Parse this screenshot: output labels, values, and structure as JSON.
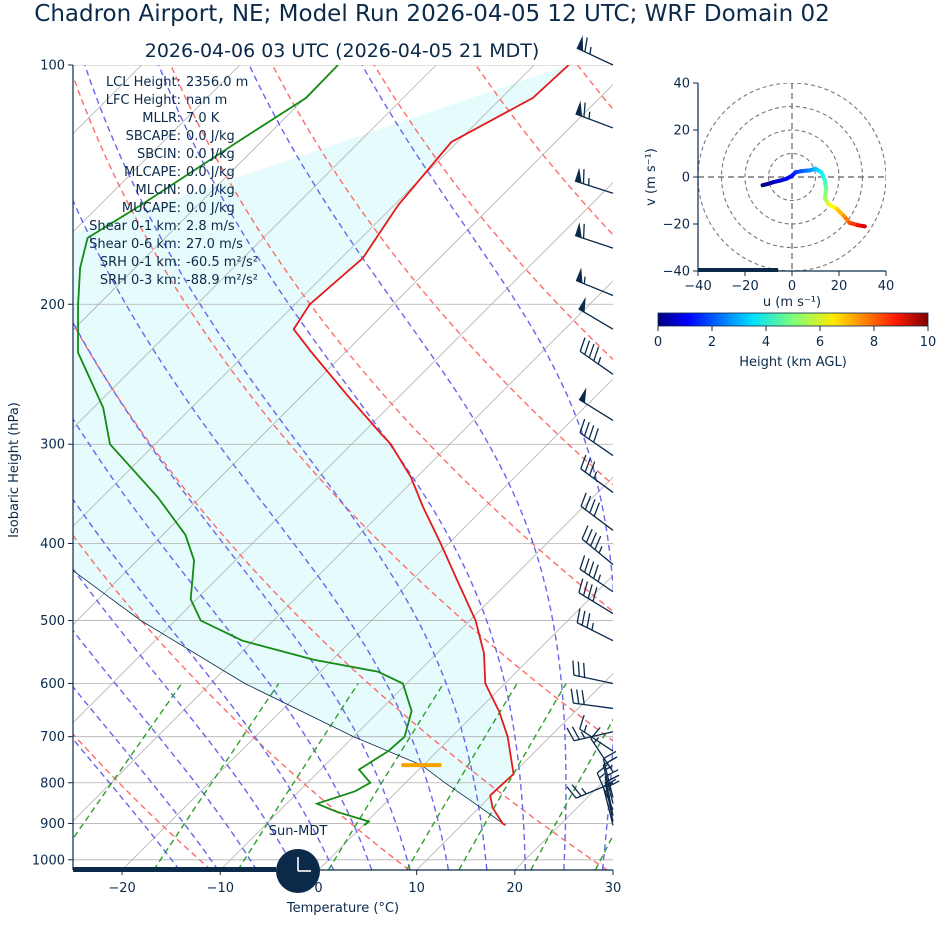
{
  "title": "Chadron Airport, NE; Model Run 2026-04-05 12 UTC; WRF Domain 02",
  "subtitle": "2026-04-06 03 UTC  (2026-04-05 21 MDT)",
  "indices": [
    {
      "label": "LCL Height:",
      "value": "2356.0 m"
    },
    {
      "label": "LFC Height:",
      "value": "nan m"
    },
    {
      "label": "MLLR:",
      "value": "7.0 K"
    },
    {
      "label": "SBCAPE:",
      "value": "0.0 J/kg"
    },
    {
      "label": "SBCIN:",
      "value": "0.0 J/kg"
    },
    {
      "label": "MLCAPE:",
      "value": "0.0 J/kg"
    },
    {
      "label": "MLCIN:",
      "value": "0.0 J/kg"
    },
    {
      "label": "MUCAPE:",
      "value": "0.0 J/kg"
    },
    {
      "label": "Shear 0-1 km:",
      "value": "2.8 m/s"
    },
    {
      "label": "Shear 0-6 km:",
      "value": "27.0 m/s"
    },
    {
      "label": "SRH 0-1 km:",
      "value": "-60.5 m²/s²"
    },
    {
      "label": "SRH 0-3 km:",
      "value": "-88.9 m²/s²"
    }
  ],
  "sun_label": "Sun-MDT",
  "colors": {
    "temperature": "#e31a1c",
    "dewpoint": "#138a13",
    "parcel": "#0b2a4a",
    "dry_adiabat": "#ff6b6b",
    "moist_adiabat": "#6666ee",
    "mixing_ratio": "#2e9e2e",
    "cape_fill": "#e6fbfb",
    "lcl_marker": "#f4a300",
    "text": "#0b2a4a"
  },
  "chart_data": [
    {
      "type": "line",
      "name": "skew-t",
      "xlabel": "Temperature (°C)",
      "ylabel": "Isobaric Height (hPa)",
      "xlim": [
        -25,
        30
      ],
      "ylim": [
        1030,
        100
      ],
      "y_scale": "log",
      "x_ticks": [
        -20,
        -10,
        0,
        10,
        20,
        30
      ],
      "y_ticks": [
        100,
        200,
        300,
        400,
        500,
        600,
        700,
        800,
        900,
        1000
      ],
      "grid": true,
      "series": [
        {
          "role": "temperature",
          "points": [
            [
              100,
              -56.5
            ],
            [
              110,
              -56.8
            ],
            [
              125,
              -60.6
            ],
            [
              150,
              -59.6
            ],
            [
              175,
              -57.8
            ],
            [
              200,
              -58.5
            ],
            [
              215,
              -57.6
            ],
            [
              230,
              -53.4
            ],
            [
              260,
              -45.5
            ],
            [
              290,
              -38.3
            ],
            [
              300,
              -36.0
            ],
            [
              330,
              -30.6
            ],
            [
              360,
              -26.3
            ],
            [
              400,
              -20.8
            ],
            [
              450,
              -14.8
            ],
            [
              500,
              -9.4
            ],
            [
              550,
              -5.2
            ],
            [
              600,
              -2.0
            ],
            [
              650,
              2.2
            ],
            [
              700,
              5.7
            ],
            [
              750,
              8.5
            ],
            [
              780,
              10.1
            ],
            [
              800,
              10.0
            ],
            [
              830,
              9.9
            ],
            [
              860,
              11.4
            ],
            [
              900,
              14.0
            ],
            [
              905,
              14.5
            ]
          ]
        },
        {
          "role": "dewpoint",
          "points": [
            [
              100,
              -80.0
            ],
            [
              110,
              -79.9
            ],
            [
              125,
              -82.4
            ],
            [
              150,
              -85.8
            ],
            [
              165,
              -87.9
            ],
            [
              180,
              -85.6
            ],
            [
              200,
              -82.1
            ],
            [
              230,
              -77.2
            ],
            [
              270,
              -69.0
            ],
            [
              300,
              -64.6
            ],
            [
              350,
              -54.3
            ],
            [
              390,
              -47.7
            ],
            [
              420,
              -44.2
            ],
            [
              470,
              -40.6
            ],
            [
              500,
              -37.4
            ],
            [
              530,
              -31.1
            ],
            [
              560,
              -21.9
            ],
            [
              580,
              -14.1
            ],
            [
              600,
              -10.4
            ],
            [
              650,
              -6.7
            ],
            [
              700,
              -4.8
            ],
            [
              730,
              -5.0
            ],
            [
              770,
              -6.1
            ],
            [
              800,
              -3.6
            ],
            [
              820,
              -4.3
            ],
            [
              850,
              -6.9
            ],
            [
              870,
              -4.1
            ],
            [
              895,
              0.2
            ],
            [
              905,
              0.1
            ]
          ]
        },
        {
          "role": "parcel",
          "points": [
            [
              905,
              14.5
            ],
            [
              850,
              9.2
            ],
            [
              800,
              4.0
            ],
            [
              760,
              -0.2
            ],
            [
              700,
              -10.0
            ],
            [
              600,
              -26.5
            ],
            [
              500,
              -43.5
            ],
            [
              400,
              -62.0
            ],
            [
              300,
              -82.0
            ],
            [
              200,
              -104.0
            ]
          ]
        }
      ],
      "lcl_marker": {
        "pressure": 760,
        "temperature": -0.2
      },
      "dry_adiabats_K": [
        240,
        260,
        280,
        300,
        320,
        340,
        360,
        380,
        400,
        420
      ],
      "moist_adiabats_C": [
        -16,
        -12,
        -8,
        -4,
        0,
        4,
        8,
        12,
        16,
        20,
        24,
        28
      ],
      "mixing_ratios_gkg": [
        0.4,
        1,
        2,
        4,
        7,
        10,
        16,
        24,
        32
      ],
      "skew_note": "isotherms skewed 45 degrees"
    },
    {
      "type": "scatter",
      "name": "hodograph",
      "xlabel": "u (m s⁻¹)",
      "ylabel": "v (m s⁻¹)",
      "xlim": [
        -40,
        40
      ],
      "ylim": [
        -40,
        40
      ],
      "x_ticks": [
        -40,
        -20,
        0,
        20,
        40
      ],
      "y_ticks": [
        -40,
        -20,
        0,
        20,
        40
      ],
      "ring_radii": [
        10,
        20,
        30,
        40
      ],
      "points": [
        {
          "u": -12.5,
          "v": -3.5,
          "h": 0.0
        },
        {
          "u": -10.5,
          "v": -3.0,
          "h": 0.2
        },
        {
          "u": -8.0,
          "v": -2.2,
          "h": 0.5
        },
        {
          "u": -5.0,
          "v": -1.5,
          "h": 0.8
        },
        {
          "u": -2.5,
          "v": -0.8,
          "h": 1.1
        },
        {
          "u": 0.0,
          "v": 0.5,
          "h": 1.4
        },
        {
          "u": 1.5,
          "v": 2.0,
          "h": 1.7
        },
        {
          "u": 4.0,
          "v": 2.5,
          "h": 2.1
        },
        {
          "u": 7.5,
          "v": 2.8,
          "h": 2.6
        },
        {
          "u": 10.0,
          "v": 3.5,
          "h": 3.1
        },
        {
          "u": 12.5,
          "v": 2.0,
          "h": 3.7
        },
        {
          "u": 14.0,
          "v": -1.5,
          "h": 4.3
        },
        {
          "u": 14.5,
          "v": -5.0,
          "h": 4.8
        },
        {
          "u": 14.0,
          "v": -9.0,
          "h": 5.3
        },
        {
          "u": 15.5,
          "v": -11.5,
          "h": 5.9
        },
        {
          "u": 19.0,
          "v": -13.5,
          "h": 6.6
        },
        {
          "u": 22.0,
          "v": -16.5,
          "h": 7.2
        },
        {
          "u": 24.5,
          "v": -19.5,
          "h": 7.9
        },
        {
          "u": 28.0,
          "v": -20.5,
          "h": 8.6
        },
        {
          "u": 31.0,
          "v": -21.0,
          "h": 9.3
        }
      ]
    },
    {
      "type": "heatmap",
      "name": "colorbar",
      "xlabel": "Height (km AGL)",
      "xlim": [
        0,
        10
      ],
      "x_ticks": [
        0,
        2,
        4,
        6,
        8,
        10
      ],
      "colormap": "jet"
    }
  ],
  "barbs": [
    {
      "p": 100,
      "u": 30,
      "v": -14
    },
    {
      "p": 120,
      "u": 32,
      "v": -12
    },
    {
      "p": 145,
      "u": 31,
      "v": -10
    },
    {
      "p": 170,
      "u": 30,
      "v": -10
    },
    {
      "p": 195,
      "u": 27,
      "v": -11
    },
    {
      "p": 215,
      "u": 22,
      "v": -13
    },
    {
      "p": 245,
      "u": 20,
      "v": -14
    },
    {
      "p": 280,
      "u": 21,
      "v": -13
    },
    {
      "p": 310,
      "u": 16,
      "v": -11
    },
    {
      "p": 345,
      "u": 15,
      "v": -11
    },
    {
      "p": 385,
      "u": 16,
      "v": -12
    },
    {
      "p": 425,
      "u": 17,
      "v": -14
    },
    {
      "p": 460,
      "u": 19,
      "v": -13
    },
    {
      "p": 490,
      "u": 18,
      "v": -11
    },
    {
      "p": 530,
      "u": 16,
      "v": -8
    },
    {
      "p": 600,
      "u": 14,
      "v": -3
    },
    {
      "p": 645,
      "u": 15,
      "v": -2
    },
    {
      "p": 690,
      "u": 13,
      "v": 3
    },
    {
      "p": 730,
      "u": 6,
      "v": -4
    },
    {
      "p": 775,
      "u": 4,
      "v": -6
    },
    {
      "p": 800,
      "u": 12,
      "v": 5
    },
    {
      "p": 835,
      "u": 3,
      "v": -12
    },
    {
      "p": 850,
      "u": 2,
      "v": -8
    },
    {
      "p": 865,
      "u": 3,
      "v": -7
    },
    {
      "p": 880,
      "u": 2,
      "v": -10
    },
    {
      "p": 895,
      "u": 2,
      "v": -10
    },
    {
      "p": 905,
      "u": 2,
      "v": -8
    }
  ]
}
